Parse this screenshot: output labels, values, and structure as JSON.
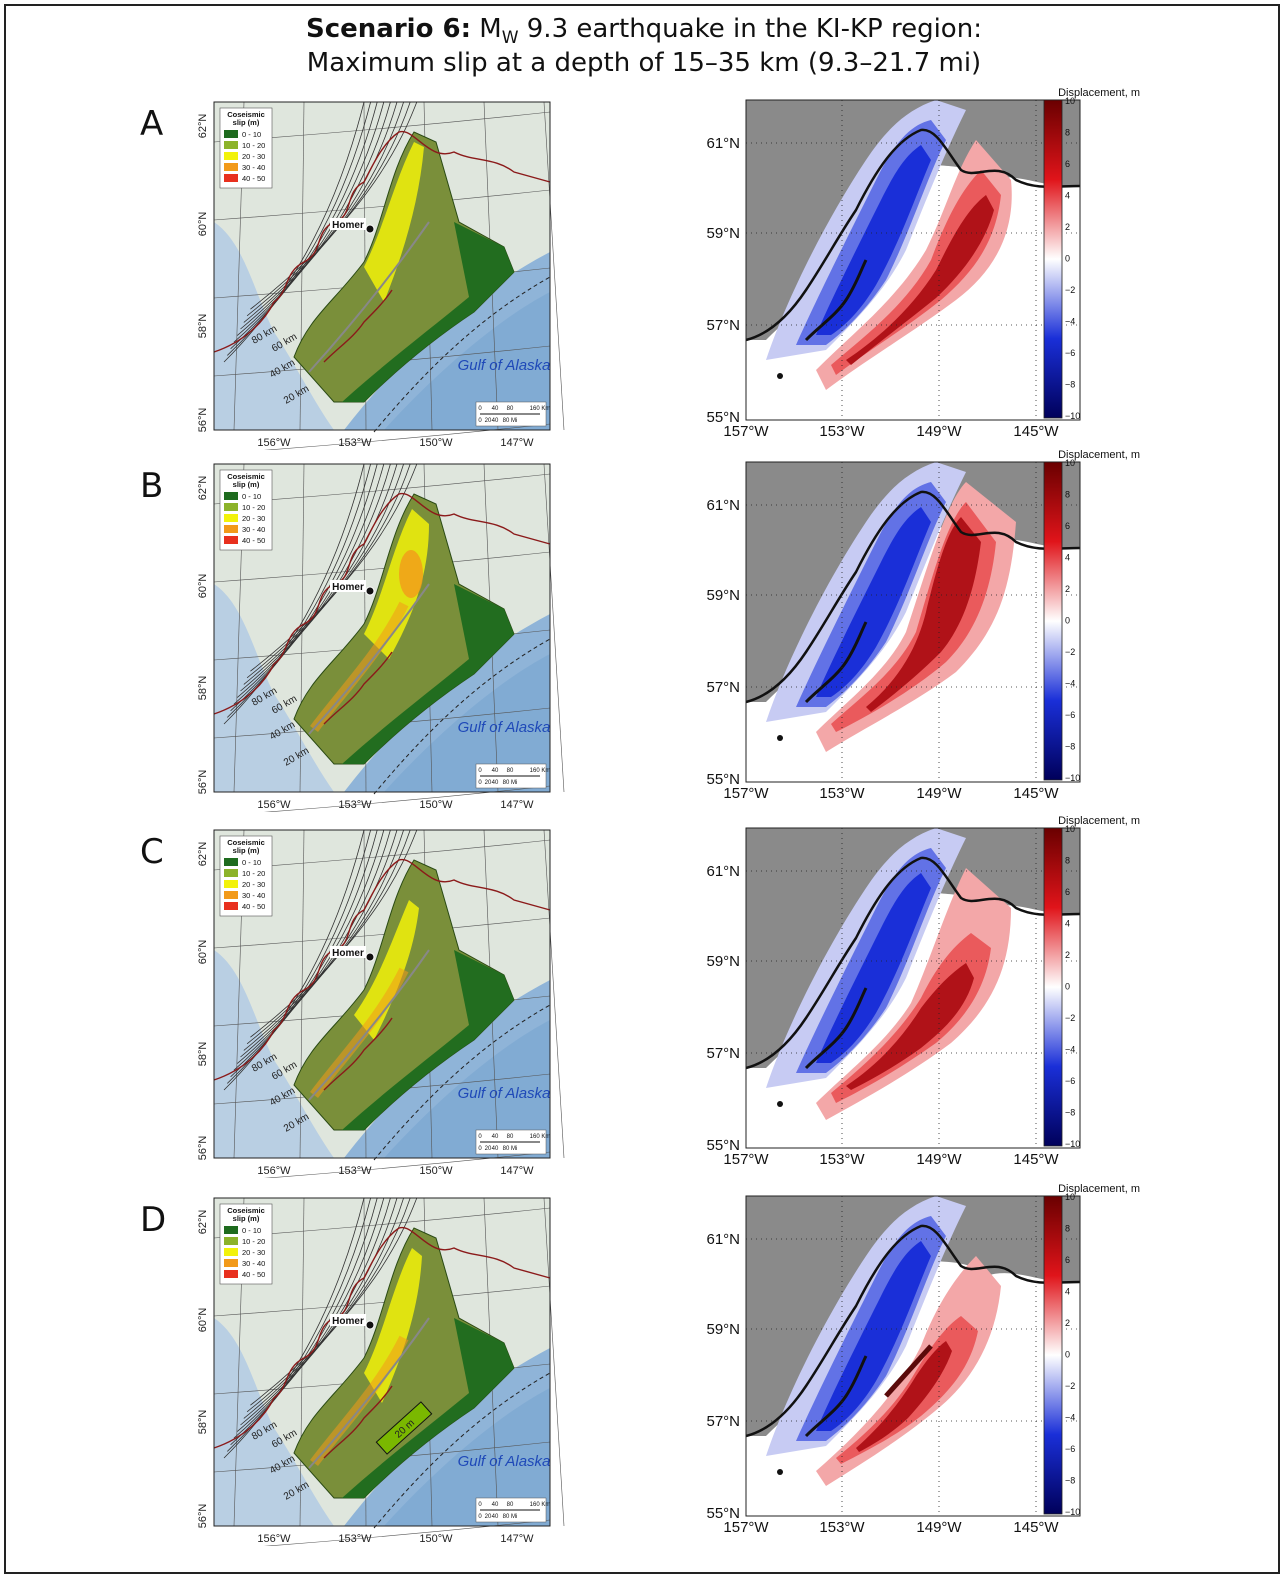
{
  "title": {
    "scenario_label": "Scenario 6:",
    "line1_part1": " M",
    "line1_sub": "W",
    "line1_part2": " 9.3 earthquake in the KI-KP region:",
    "line2": "Maximum slip at a depth of 15–35 km (9.3–21.7 mi)"
  },
  "panels": [
    {
      "letter": "A",
      "slip_highlight": "uniform",
      "annotation": ""
    },
    {
      "letter": "B",
      "slip_highlight": "northeast",
      "annotation": ""
    },
    {
      "letter": "C",
      "slip_highlight": "central",
      "annotation": ""
    },
    {
      "letter": "D",
      "slip_highlight": "patch",
      "annotation": "20 m"
    }
  ],
  "slip_map": {
    "legend_title_1": "Coseismic",
    "legend_title_2": "slip (m)",
    "legend": [
      {
        "label": "0 - 10",
        "color": "#1e6b1e"
      },
      {
        "label": "10 - 20",
        "color": "#8cb32a"
      },
      {
        "label": "20 - 30",
        "color": "#f2f20a"
      },
      {
        "label": "30 - 40",
        "color": "#f29a1a"
      },
      {
        "label": "40 - 50",
        "color": "#e8301e"
      }
    ],
    "lon_ticks": [
      "156°W",
      "153°W",
      "150°W",
      "147°W"
    ],
    "lat_ticks": [
      "62°N",
      "60°N",
      "58°N",
      "56°N"
    ],
    "city": "Homer",
    "sea_label": "Gulf of Alaska",
    "depth_labels": [
      "80 km",
      "60 km",
      "40 km",
      "20 km"
    ],
    "scale_km": [
      "0",
      "40",
      "80",
      "160 Km"
    ],
    "scale_mi": [
      "0",
      "20",
      "40",
      "80 Mi"
    ]
  },
  "displacement_map": {
    "colorbar_label": "Displacement, m",
    "colorbar_ticks": [
      "10",
      "8",
      "6",
      "4",
      "2",
      "0",
      "−2",
      "−4",
      "−6",
      "−8",
      "−10"
    ],
    "lon_ticks": [
      "157°W",
      "153°W",
      "149°W",
      "145°W"
    ],
    "lat_ticks": [
      "61°N",
      "59°N",
      "57°N",
      "55°N"
    ],
    "colors": {
      "uplift": "#e0141a",
      "subsidence": "#1a2fd8",
      "land": "#8a8a8a"
    }
  }
}
